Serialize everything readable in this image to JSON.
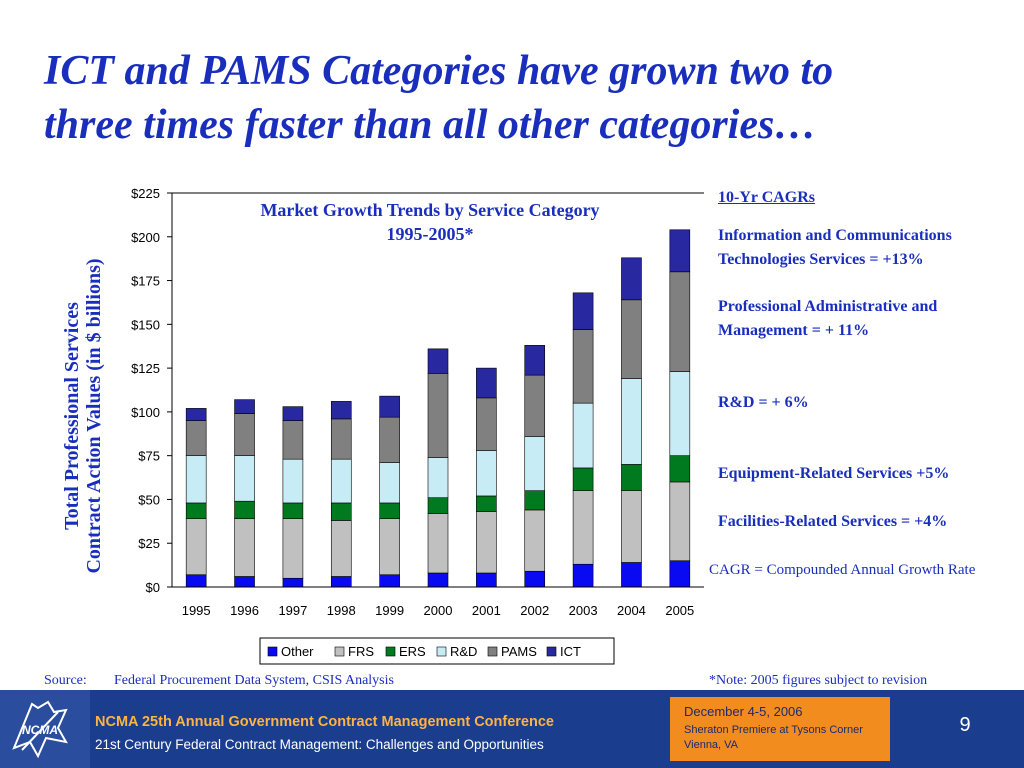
{
  "slide": {
    "title_lines": [
      "ICT and PAMS Categories have grown two to",
      "three times faster than all other categories…"
    ],
    "y_axis_title_lines": [
      "Total Professional Services",
      "Contract Action Values (in $ billions)"
    ],
    "chart_title_lines": [
      "Market Growth Trends by Service Category",
      "1995-2005*"
    ],
    "cagr": {
      "heading": "10-Yr CAGRs",
      "items": [
        "Information and Communications Technologies Services =  +13%",
        "Professional Administrative and Management = + 11%",
        "R&D = + 6%",
        "Equipment-Related Services +5%",
        "Facilities-Related Services = +4%"
      ],
      "definition": "CAGR = Compounded Annual Growth Rate"
    },
    "source_label": "Source:",
    "source_text": "Federal Procurement Data System,  CSIS Analysis",
    "note": "*Note:  2005 figures  subject to revision"
  },
  "footer": {
    "conference_title": "NCMA 25th Annual Government Contract Management Conference",
    "conference_subtitle": "21st Century Federal Contract Management: Challenges and Opportunities",
    "logo_text": "NCMA",
    "date": "December 4-5, 2006",
    "venue_lines": [
      "Sheraton Premiere at Tysons Corner",
      "Vienna, VA"
    ],
    "page_number": "9"
  },
  "chart_data": {
    "type": "bar",
    "stacked": true,
    "categories": [
      "1995",
      "1996",
      "1997",
      "1998",
      "1999",
      "2000",
      "2001",
      "2002",
      "2003",
      "2004",
      "2005"
    ],
    "y_tick_labels": [
      "$0",
      "$25",
      "$50",
      "$75",
      "$100",
      "$125",
      "$150",
      "$175",
      "$200",
      "$225"
    ],
    "ylim": [
      0,
      225
    ],
    "y_tick_step": 25,
    "grid": false,
    "legend_position": "bottom",
    "series": [
      {
        "name": "Other",
        "color": "#0a0af2",
        "values": [
          7,
          6,
          5,
          6,
          7,
          8,
          8,
          9,
          13,
          14,
          15
        ]
      },
      {
        "name": "FRS",
        "color": "#c0c0c0",
        "values": [
          32,
          33,
          34,
          32,
          32,
          34,
          35,
          35,
          42,
          41,
          45
        ]
      },
      {
        "name": "ERS",
        "color": "#007a1f",
        "values": [
          9,
          10,
          9,
          10,
          9,
          9,
          9,
          11,
          13,
          15,
          15
        ]
      },
      {
        "name": "R&D",
        "color": "#c8ecf5",
        "values": [
          27,
          26,
          25,
          25,
          23,
          23,
          26,
          31,
          37,
          49,
          48
        ]
      },
      {
        "name": "PAMS",
        "color": "#808080",
        "values": [
          20,
          24,
          22,
          23,
          26,
          48,
          30,
          35,
          42,
          45,
          57
        ]
      },
      {
        "name": "ICT",
        "color": "#2828a0",
        "values": [
          7,
          8,
          8,
          10,
          12,
          14,
          17,
          17,
          21,
          24,
          24
        ]
      }
    ]
  }
}
